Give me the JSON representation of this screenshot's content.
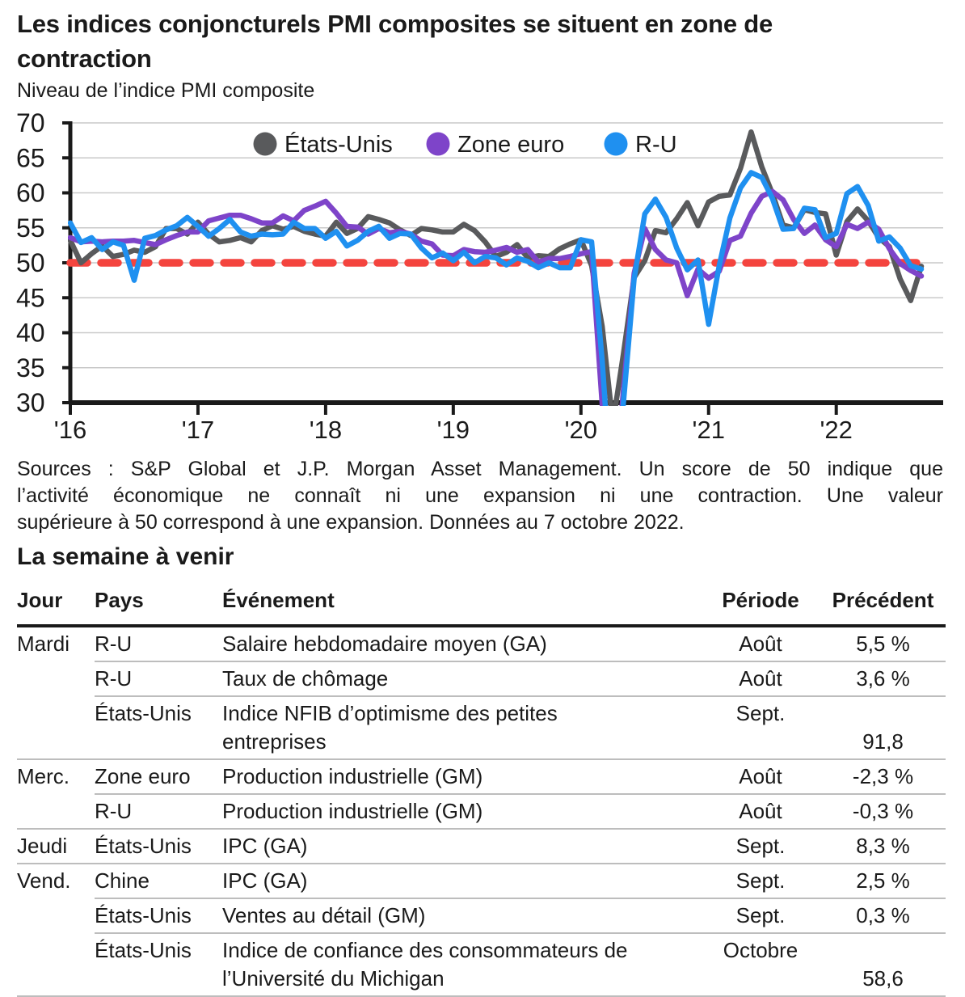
{
  "page": {
    "title": "Les indices conjoncturels PMI composites se situent en zone de\ncontraction",
    "subtitle": "Niveau de l’indice PMI composite",
    "section2_title": "La semaine à venir"
  },
  "sources_lines": [
    "Sources : S&P Global et J.P. Morgan Asset Management. Un score de 50 indique que",
    "l’activité économique ne connaît ni une expansion ni une contraction. Une valeur",
    "supérieure à 50 correspond à une expansion. Données au 7 octobre 2022."
  ],
  "chart_data": {
    "type": "line",
    "title": "Niveau de l’indice PMI composite",
    "x_start": "2016-01",
    "x_end": "2022-09",
    "x_interval": "monthly",
    "x_tick_labels": [
      "'16",
      "'17",
      "'18",
      "'19",
      "'20",
      "'21",
      "'22"
    ],
    "y_ticks": [
      30,
      35,
      40,
      45,
      50,
      55,
      60,
      65,
      70
    ],
    "ylim": [
      30,
      70
    ],
    "grid": true,
    "legend_position": "top-center",
    "reference_line": {
      "value": 50,
      "color": "#f4443e",
      "style": "dashed"
    },
    "series": [
      {
        "name": "États-Unis",
        "color": "#595a5c",
        "values": [
          53.2,
          50.0,
          51.3,
          52.4,
          50.9,
          51.2,
          51.8,
          51.5,
          52.3,
          54.9,
          54.9,
          54.1,
          55.8,
          54.1,
          53.0,
          53.2,
          53.6,
          53.0,
          54.6,
          55.3,
          54.8,
          55.2,
          54.5,
          54.1,
          53.8,
          55.8,
          54.2,
          54.9,
          56.6,
          56.2,
          55.7,
          54.7,
          53.9,
          54.9,
          54.7,
          54.4,
          54.4,
          55.5,
          54.6,
          53.0,
          50.9,
          51.5,
          52.6,
          50.7,
          51.0,
          50.9,
          52.0,
          52.7,
          53.3,
          49.6,
          40.9,
          27.0,
          37.0,
          47.9,
          50.3,
          54.6,
          54.3,
          56.3,
          58.6,
          55.3,
          58.7,
          59.5,
          59.7,
          63.5,
          68.7,
          63.7,
          59.9,
          55.4,
          55.0,
          57.6,
          57.2,
          57.0,
          51.1,
          55.9,
          57.7,
          56.0,
          53.6,
          52.3,
          47.7,
          44.6,
          49.5
        ]
      },
      {
        "name": "Zone euro",
        "color": "#7e44c9",
        "values": [
          53.6,
          53.0,
          53.1,
          53.0,
          53.1,
          53.1,
          53.2,
          52.9,
          52.6,
          53.3,
          53.9,
          54.4,
          54.4,
          56.0,
          56.4,
          56.8,
          56.8,
          56.3,
          55.7,
          55.7,
          56.7,
          56.0,
          57.5,
          58.1,
          58.8,
          57.1,
          55.2,
          55.1,
          54.1,
          54.9,
          54.3,
          54.5,
          54.1,
          53.1,
          52.7,
          51.1,
          51.0,
          51.9,
          51.6,
          51.5,
          51.8,
          52.2,
          51.5,
          51.9,
          50.1,
          50.6,
          50.6,
          50.9,
          51.3,
          51.6,
          29.7,
          13.6,
          31.9,
          48.5,
          54.9,
          51.9,
          50.4,
          50.0,
          45.3,
          49.1,
          47.8,
          48.8,
          53.2,
          53.8,
          57.1,
          59.5,
          60.2,
          59.0,
          56.2,
          54.2,
          55.4,
          53.3,
          52.3,
          55.5,
          54.9,
          55.8,
          54.8,
          52.0,
          49.9,
          48.9,
          48.1
        ]
      },
      {
        "name": "R-U",
        "color": "#1f90f0",
        "values": [
          55.7,
          52.9,
          53.6,
          51.9,
          53.0,
          52.5,
          47.5,
          53.5,
          53.9,
          54.7,
          55.3,
          56.5,
          55.2,
          53.8,
          54.9,
          56.2,
          54.4,
          53.8,
          54.1,
          54.0,
          54.1,
          55.8,
          54.9,
          54.9,
          53.5,
          54.5,
          52.4,
          53.2,
          54.5,
          55.2,
          53.5,
          54.2,
          54.1,
          52.1,
          50.7,
          51.4,
          50.3,
          51.5,
          50.0,
          50.9,
          50.7,
          49.7,
          50.7,
          50.2,
          49.3,
          50.0,
          49.3,
          49.3,
          53.3,
          53.0,
          36.0,
          13.8,
          30.0,
          47.7,
          57.0,
          59.1,
          56.5,
          52.1,
          49.0,
          50.4,
          41.2,
          49.6,
          56.4,
          60.7,
          62.9,
          62.2,
          59.2,
          54.8,
          54.9,
          57.8,
          57.6,
          53.6,
          54.2,
          59.9,
          60.9,
          58.2,
          53.1,
          53.7,
          52.1,
          49.6,
          49.1
        ]
      }
    ]
  },
  "table": {
    "headers": [
      "Jour",
      "Pays",
      "Événement",
      "Période",
      "Précédent"
    ],
    "rows": [
      {
        "day": "Mardi",
        "country": "R-U",
        "event": "Salaire hebdomadaire moyen (GA)",
        "period": "Août",
        "previous": "5,5 %",
        "sep": "indent"
      },
      {
        "day": "",
        "country": "R-U",
        "event": "Taux de chômage",
        "period": "Août",
        "previous": "3,6 %",
        "sep": "indent"
      },
      {
        "day": "",
        "country": "États-Unis",
        "event": [
          "Indice NFIB d’optimisme des petites",
          "entreprises"
        ],
        "period": "Sept.",
        "previous": "91,8",
        "sep": "full"
      },
      {
        "day": "Merc.",
        "country": "Zone euro",
        "event": "Production industrielle (GM)",
        "period": "Août",
        "previous": "-2,3 %",
        "sep": "indent"
      },
      {
        "day": "",
        "country": "R-U",
        "event": "Production industrielle (GM)",
        "period": "Août",
        "previous": "-0,3 %",
        "sep": "full"
      },
      {
        "day": "Jeudi",
        "country": "États-Unis",
        "event": "IPC (GA)",
        "period": "Sept.",
        "previous": "8,3 %",
        "sep": "full"
      },
      {
        "day": "Vend.",
        "country": "Chine",
        "event": "IPC (GA)",
        "period": "Sept.",
        "previous": "2,5 %",
        "sep": "indent"
      },
      {
        "day": "",
        "country": "États-Unis",
        "event": "Ventes au détail (GM)",
        "period": "Sept.",
        "previous": "0,3 %",
        "sep": "indent"
      },
      {
        "day": "",
        "country": "États-Unis",
        "event": [
          "Indice de confiance des consommateurs de",
          "l’Université du Michigan"
        ],
        "period": "Octobre",
        "previous": "58,6",
        "sep": "full"
      }
    ]
  },
  "colors": {
    "text": "#1a1a1a",
    "axis": "#1a1a1a",
    "gridline": "#c9c9c9",
    "table_separator": "#bdbdbd",
    "reference_red": "#f4443e"
  }
}
